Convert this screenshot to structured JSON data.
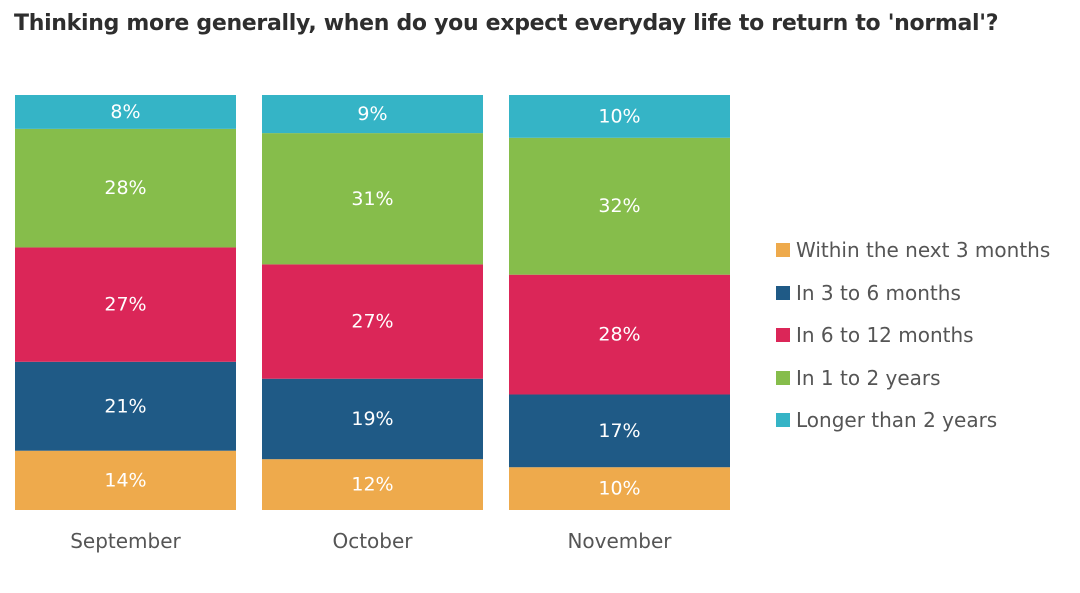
{
  "chart_data": {
    "type": "bar",
    "stacked": true,
    "title": "Thinking more generally, when do you expect everyday life to return to 'normal'?",
    "categories": [
      "September",
      "October",
      "November"
    ],
    "series": [
      {
        "name": "Within the next 3 months",
        "color": "#eeaa4c",
        "values": [
          14,
          12,
          10
        ],
        "labels": [
          "14%",
          "12%",
          "10%"
        ]
      },
      {
        "name": "In 3 to 6 months",
        "color": "#1f5a86",
        "values": [
          21,
          19,
          17
        ],
        "labels": [
          "21%",
          "19%",
          "17%"
        ]
      },
      {
        "name": "In 6 to 12 months",
        "color": "#db2658",
        "values": [
          27,
          27,
          28
        ],
        "labels": [
          "27%",
          "27%",
          "28%"
        ]
      },
      {
        "name": "In 1 to 2 years",
        "color": "#86bd4b",
        "values": [
          28,
          31,
          32
        ],
        "labels": [
          "28%",
          "31%",
          "32%"
        ]
      },
      {
        "name": "Longer than 2 years",
        "color": "#35b4c6",
        "values": [
          8,
          9,
          10
        ],
        "labels": [
          "8%",
          "9%",
          "10%"
        ]
      }
    ],
    "value_unit": "%",
    "legend_position": "right",
    "grid": false,
    "y_axis_visible": false
  }
}
